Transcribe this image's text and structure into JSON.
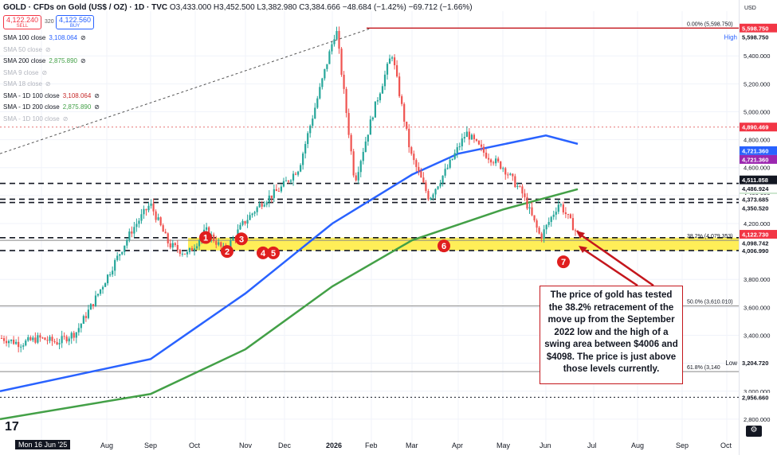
{
  "header": {
    "title": "GOLD · CFDs on Gold (US$ / OZ) · 1D · TVC",
    "ohlc": "O3,433.000 H3,452.500 L3,382.980 C3,384.666 −48.684 (−1.42%) −69.712 (−1.66%)"
  },
  "trade": {
    "sell_price": "4,122.240",
    "sell_label": "SELL",
    "spread": "320",
    "buy_price": "4,122.560",
    "buy_label": "BUY"
  },
  "indicators": [
    {
      "label": "SMA 100 close",
      "value": "3,108.064",
      "dim": false
    },
    {
      "label": "SMA 50 close",
      "value": "",
      "dim": true
    },
    {
      "label": "SMA 200 close",
      "value": "2,875.890",
      "dim": false
    },
    {
      "label": "SMA 9 close",
      "value": "",
      "dim": true
    },
    {
      "label": "SMA 18 close",
      "value": "",
      "dim": true
    },
    {
      "label": "SMA - 1D 100 close",
      "value": "3,108.064",
      "dim": false
    },
    {
      "label": "SMA - 1D 200 close",
      "value": "2,875.890",
      "dim": false
    },
    {
      "label": "SMA - 1D 100 close",
      "value": "",
      "dim": true
    }
  ],
  "currency": "USD",
  "chart_data": {
    "type": "candlestick",
    "title": "",
    "x_ticks": [
      "Mon 16 Jun '25",
      "Aug",
      "Sep",
      "Oct",
      "Nov",
      "Dec",
      "2026",
      "Feb",
      "Mar",
      "Apr",
      "May",
      "Jun",
      "Jul",
      "Aug",
      "Sep",
      "Oct"
    ],
    "y_ticks": [
      2800,
      3000,
      3200,
      3400,
      3600,
      3800,
      4000,
      4200,
      4400,
      4600,
      4800,
      5000,
      5200,
      5400
    ],
    "y_tick_labels": [
      "2,800.000",
      "3,000.000",
      "3,200.000",
      "3,400.000",
      "3,600.000",
      "3,800.000",
      "4,000.000",
      "4,200.000",
      "4,400.000",
      "4,600.000",
      "4,800.000",
      "5,000.000",
      "5,200.000",
      "5,400.000"
    ],
    "ylim": [
      2640,
      5720
    ],
    "price_path": [
      [
        "Mon 16 Jun '25",
        3380
      ],
      [
        "Jul",
        3340
      ],
      [
        "Aug",
        3380
      ],
      [
        "Aug",
        3350
      ],
      [
        "Sep",
        3420
      ],
      [
        "Sep",
        3650
      ],
      [
        "Oct",
        3900
      ],
      [
        "Oct",
        4150
      ],
      [
        "Oct",
        4340
      ],
      [
        "Oct",
        4050
      ],
      [
        "Nov",
        3980
      ],
      [
        "Nov",
        4150
      ],
      [
        "Nov",
        4000
      ],
      [
        "Dec",
        4200
      ],
      [
        "Dec",
        4350
      ],
      [
        "Jan",
        4450
      ],
      [
        "Jan",
        4600
      ],
      [
        "Jan",
        5100
      ],
      [
        "Feb",
        5598
      ],
      [
        "Feb",
        4500
      ],
      [
        "Feb",
        5000
      ],
      [
        "Mar",
        5420
      ],
      [
        "Mar",
        4700
      ],
      [
        "Mar",
        4380
      ],
      [
        "Apr",
        4600
      ],
      [
        "Apr",
        4850
      ],
      [
        "May",
        4700
      ],
      [
        "May",
        4600
      ],
      [
        "Jun",
        4420
      ],
      [
        "Jun",
        4100
      ],
      [
        "Jun",
        4350
      ],
      [
        "Jun",
        4122
      ]
    ],
    "moving_averages": [
      {
        "name": "SMA 100",
        "color": "#2962ff",
        "points": [
          [
            "Mon 16 Jun '25",
            3000
          ],
          [
            "Sep",
            3230
          ],
          [
            "Nov",
            3700
          ],
          [
            "Jan",
            4200
          ],
          [
            "Mar",
            4550
          ],
          [
            "Apr",
            4700
          ],
          [
            "Jun",
            4830
          ],
          [
            "Jun",
            4770
          ]
        ]
      },
      {
        "name": "SMA 200",
        "color": "#43a047",
        "points": [
          [
            "Mon 16 Jun '25",
            2800
          ],
          [
            "Sep",
            2980
          ],
          [
            "Nov",
            3300
          ],
          [
            "Jan",
            3750
          ],
          [
            "Mar",
            4080
          ],
          [
            "May",
            4300
          ],
          [
            "Jun",
            4446
          ]
        ]
      }
    ],
    "horizontal_levels": [
      {
        "label": "0.00% (5,598.750)",
        "value": 5598.75,
        "style": "solid-red"
      },
      {
        "label": "",
        "value": 4890.469,
        "style": "dotted-red"
      },
      {
        "label": "",
        "value": 4486.924,
        "style": "dashed"
      },
      {
        "label": "",
        "value": 4373.685,
        "style": "dashed"
      },
      {
        "label": "",
        "value": 4350.52,
        "style": "dashed"
      },
      {
        "label": "38.2% (4,079.353)",
        "value": 4079.353,
        "style": "fib"
      },
      {
        "label": "",
        "value": 4098.742,
        "style": "dashed"
      },
      {
        "label": "",
        "value": 4006.99,
        "style": "dashed"
      },
      {
        "label": "50.0% (3,610.010)",
        "value": 3610.01,
        "style": "fib"
      },
      {
        "label": "61.8% (3,140",
        "value": 3140,
        "style": "fib"
      },
      {
        "label": "",
        "value": 2956.66,
        "style": "dotted"
      }
    ],
    "swing_zone": {
      "from": 4006.99,
      "to": 4098.742,
      "color": "#ffeb3b"
    },
    "trendline": {
      "from": [
        "Mon 16 Jun '25",
        4700
      ],
      "to": [
        "Feb",
        5598
      ]
    },
    "markers": [
      {
        "label": "1",
        "x": "Oct",
        "y": 4100
      },
      {
        "label": "2",
        "x": "Oct",
        "y": 4000
      },
      {
        "label": "3",
        "x": "Oct",
        "y": 4090
      },
      {
        "label": "4",
        "x": "Nov",
        "y": 3990
      },
      {
        "label": "5",
        "x": "Nov",
        "y": 3990
      },
      {
        "label": "6",
        "x": "Mar",
        "y": 4040
      },
      {
        "label": "7",
        "x": "Jun",
        "y": 3960
      }
    ],
    "price_scale_labels": [
      {
        "text": "5,598.750",
        "value": 5598.75,
        "bg": "#f23645",
        "fg": "#ffffff",
        "tag": ""
      },
      {
        "text": "5,598.750",
        "value": 5598.75,
        "bg": "#ffffff",
        "fg": "#131722",
        "tag": "High"
      },
      {
        "text": "4,890.469",
        "value": 4890.469,
        "bg": "#f23645",
        "fg": "#ffffff",
        "tag": ""
      },
      {
        "text": "4,721.360",
        "value": 4721.36,
        "bg": "#2962ff",
        "fg": "#ffffff",
        "tag": ""
      },
      {
        "text": "4,721.360",
        "value": 4721.36,
        "bg": "#9c27b0",
        "fg": "#ffffff",
        "tag": ""
      },
      {
        "text": "4,511.858",
        "value": 4511.858,
        "bg": "#131722",
        "fg": "#ffffff",
        "tag": ""
      },
      {
        "text": "4,446.228",
        "value": 4446.228,
        "bg": "#43a047",
        "fg": "#ffffff",
        "tag": ""
      },
      {
        "text": "4,486.924",
        "value": 4486.924,
        "bg": "#ffffff",
        "fg": "#131722",
        "tag": ""
      },
      {
        "text": "4,373.685",
        "value": 4373.685,
        "bg": "#ffffff",
        "fg": "#131722",
        "tag": ""
      },
      {
        "text": "4,350.520",
        "value": 4350.52,
        "bg": "#ffffff",
        "fg": "#131722",
        "tag": ""
      },
      {
        "text": "4,122.730",
        "value": 4122.73,
        "bg": "#f23645",
        "fg": "#ffffff",
        "tag": ""
      },
      {
        "text": "4,098.742",
        "value": 4098.742,
        "bg": "#ffffff",
        "fg": "#131722",
        "tag": ""
      },
      {
        "text": "4,006.990",
        "value": 4006.99,
        "bg": "#ffffff",
        "fg": "#131722",
        "tag": ""
      },
      {
        "text": "3,204.720",
        "value": 3204.72,
        "bg": "#ffffff",
        "fg": "#131722",
        "tag": "Low"
      },
      {
        "text": "2,956.660",
        "value": 2956.66,
        "bg": "#ffffff",
        "fg": "#131722",
        "tag": ""
      }
    ],
    "annotation": "The price of gold has tested the 38.2% retracement of the move up from the September 2022 low and the high of a swing area between $4006 and $4098. The price is just above those levels currently."
  }
}
